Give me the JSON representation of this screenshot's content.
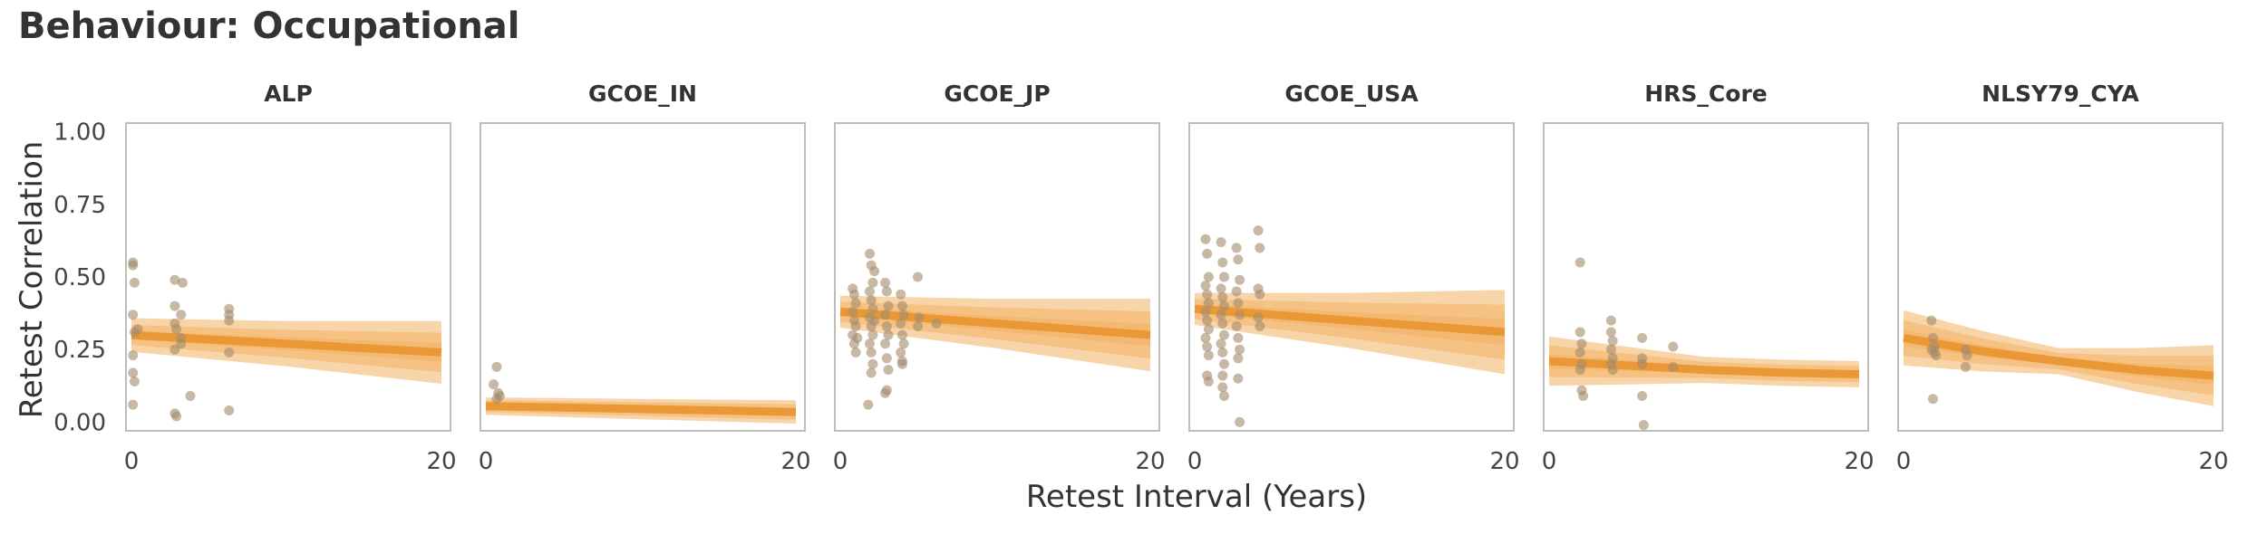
{
  "title": "Behaviour: Occupational",
  "chart_data": {
    "type": "scatter",
    "title": "Behaviour: Occupational",
    "xlabel": "Retest Interval (Years)",
    "ylabel": "Retest Correlation",
    "xlim": [
      0,
      20
    ],
    "ylim": [
      -0.03,
      1.03
    ],
    "xticks": [
      0,
      20
    ],
    "yticks": [
      0.0,
      0.25,
      0.5,
      0.75,
      1.0
    ],
    "ytick_labels": [
      "0.00",
      "0.25",
      "0.50",
      "0.75",
      "1.00"
    ],
    "grid": false,
    "colors": {
      "point": "#a38a6a",
      "band": "#f0a040",
      "line": "#e8922a",
      "frame": "#bdbdbd"
    },
    "panels": [
      {
        "name": "ALP",
        "fit": {
          "x": [
            0,
            5,
            10,
            15,
            20
          ],
          "median": [
            0.3,
            0.285,
            0.27,
            0.255,
            0.24
          ],
          "half_widths": [
            0.012,
            0.028,
            0.048
          ],
          "widen": [
            0.01,
            0.03,
            0.06
          ]
        },
        "points": [
          [
            0.1,
            0.55
          ],
          [
            0.1,
            0.54
          ],
          [
            0.2,
            0.48
          ],
          [
            0.1,
            0.37
          ],
          [
            0.2,
            0.31
          ],
          [
            0.4,
            0.32
          ],
          [
            0.1,
            0.23
          ],
          [
            0.1,
            0.17
          ],
          [
            0.2,
            0.14
          ],
          [
            0.1,
            0.06
          ],
          [
            2.8,
            0.49
          ],
          [
            3.3,
            0.48
          ],
          [
            2.8,
            0.4
          ],
          [
            3.2,
            0.37
          ],
          [
            2.8,
            0.34
          ],
          [
            2.9,
            0.32
          ],
          [
            3.2,
            0.29
          ],
          [
            3.2,
            0.27
          ],
          [
            2.8,
            0.25
          ],
          [
            2.8,
            0.03
          ],
          [
            2.9,
            0.02
          ],
          [
            3.8,
            0.09
          ],
          [
            6.3,
            0.39
          ],
          [
            6.3,
            0.37
          ],
          [
            6.3,
            0.35
          ],
          [
            6.3,
            0.24
          ],
          [
            6.3,
            0.04
          ]
        ]
      },
      {
        "name": "GCOE_IN",
        "fit": {
          "x": [
            0,
            5,
            10,
            15,
            20
          ],
          "median": [
            0.055,
            0.05,
            0.045,
            0.04,
            0.035
          ],
          "half_widths": [
            0.01,
            0.02,
            0.03
          ],
          "widen": [
            0.0,
            0.005,
            0.01
          ]
        },
        "points": [
          [
            0.5,
            0.13
          ],
          [
            0.7,
            0.19
          ],
          [
            0.8,
            0.1
          ],
          [
            0.9,
            0.09
          ],
          [
            0.7,
            0.08
          ]
        ]
      },
      {
        "name": "GCOE_JP",
        "fit": {
          "x": [
            0,
            5,
            10,
            15,
            20
          ],
          "median": [
            0.38,
            0.36,
            0.34,
            0.32,
            0.3
          ],
          "half_widths": [
            0.012,
            0.028,
            0.045
          ],
          "widen": [
            0.01,
            0.04,
            0.08
          ]
        },
        "points": [
          [
            0.8,
            0.46
          ],
          [
            0.9,
            0.44
          ],
          [
            1.0,
            0.41
          ],
          [
            0.8,
            0.38
          ],
          [
            0.9,
            0.35
          ],
          [
            1.0,
            0.33
          ],
          [
            0.8,
            0.3
          ],
          [
            0.9,
            0.27
          ],
          [
            1.0,
            0.24
          ],
          [
            1.1,
            0.29
          ],
          [
            1.9,
            0.58
          ],
          [
            2.0,
            0.54
          ],
          [
            2.1,
            0.48
          ],
          [
            1.9,
            0.45
          ],
          [
            2.0,
            0.42
          ],
          [
            2.1,
            0.39
          ],
          [
            1.9,
            0.36
          ],
          [
            2.0,
            0.33
          ],
          [
            2.1,
            0.3
          ],
          [
            1.9,
            0.27
          ],
          [
            2.0,
            0.24
          ],
          [
            2.1,
            0.2
          ],
          [
            2.0,
            0.17
          ],
          [
            1.8,
            0.06
          ],
          [
            2.2,
            0.52
          ],
          [
            2.2,
            0.35
          ],
          [
            2.9,
            0.48
          ],
          [
            3.0,
            0.45
          ],
          [
            3.1,
            0.4
          ],
          [
            2.9,
            0.37
          ],
          [
            3.0,
            0.33
          ],
          [
            3.1,
            0.3
          ],
          [
            2.9,
            0.27
          ],
          [
            3.0,
            0.22
          ],
          [
            3.1,
            0.18
          ],
          [
            3.0,
            0.11
          ],
          [
            2.9,
            0.1
          ],
          [
            3.9,
            0.44
          ],
          [
            4.0,
            0.4
          ],
          [
            4.1,
            0.37
          ],
          [
            3.9,
            0.34
          ],
          [
            4.0,
            0.3
          ],
          [
            4.1,
            0.27
          ],
          [
            3.9,
            0.24
          ],
          [
            4.0,
            0.21
          ],
          [
            4.0,
            0.2
          ],
          [
            5.0,
            0.5
          ],
          [
            5.1,
            0.36
          ],
          [
            5.0,
            0.33
          ],
          [
            6.2,
            0.34
          ]
        ]
      },
      {
        "name": "GCOE_USA",
        "fit": {
          "x": [
            0,
            5,
            10,
            15,
            20
          ],
          "median": [
            0.39,
            0.37,
            0.35,
            0.33,
            0.31
          ],
          "half_widths": [
            0.012,
            0.028,
            0.045
          ],
          "widen": [
            0.01,
            0.05,
            0.1
          ]
        },
        "points": [
          [
            0.7,
            0.63
          ],
          [
            0.8,
            0.58
          ],
          [
            0.9,
            0.5
          ],
          [
            0.7,
            0.47
          ],
          [
            0.8,
            0.44
          ],
          [
            0.9,
            0.41
          ],
          [
            0.7,
            0.38
          ],
          [
            0.8,
            0.35
          ],
          [
            0.9,
            0.32
          ],
          [
            0.7,
            0.29
          ],
          [
            0.8,
            0.26
          ],
          [
            0.9,
            0.23
          ],
          [
            0.8,
            0.16
          ],
          [
            0.9,
            0.14
          ],
          [
            1.7,
            0.62
          ],
          [
            1.8,
            0.55
          ],
          [
            1.9,
            0.5
          ],
          [
            1.7,
            0.46
          ],
          [
            1.8,
            0.43
          ],
          [
            1.9,
            0.4
          ],
          [
            1.7,
            0.37
          ],
          [
            1.8,
            0.34
          ],
          [
            1.9,
            0.3
          ],
          [
            1.7,
            0.27
          ],
          [
            1.8,
            0.24
          ],
          [
            1.9,
            0.2
          ],
          [
            1.8,
            0.16
          ],
          [
            1.8,
            0.12
          ],
          [
            1.9,
            0.09
          ],
          [
            2.7,
            0.6
          ],
          [
            2.8,
            0.56
          ],
          [
            2.9,
            0.49
          ],
          [
            2.7,
            0.45
          ],
          [
            2.8,
            0.41
          ],
          [
            2.9,
            0.37
          ],
          [
            2.7,
            0.33
          ],
          [
            2.8,
            0.29
          ],
          [
            2.9,
            0.25
          ],
          [
            2.8,
            0.22
          ],
          [
            2.8,
            0.15
          ],
          [
            2.9,
            0.0
          ],
          [
            4.1,
            0.66
          ],
          [
            4.2,
            0.6
          ],
          [
            4.1,
            0.46
          ],
          [
            4.2,
            0.44
          ],
          [
            4.1,
            0.36
          ],
          [
            4.2,
            0.33
          ]
        ]
      },
      {
        "name": "HRS_Core",
        "fit": {
          "x": [
            0,
            5,
            10,
            15,
            20
          ],
          "median": [
            0.21,
            0.195,
            0.18,
            0.17,
            0.165
          ],
          "half_widths": [
            0.012,
            0.028,
            0.045
          ],
          "widen": [
            0.04,
            0.0,
            0.0
          ]
        },
        "points": [
          [
            2.0,
            0.55
          ],
          [
            2.0,
            0.31
          ],
          [
            2.1,
            0.27
          ],
          [
            2.0,
            0.24
          ],
          [
            2.1,
            0.2
          ],
          [
            2.0,
            0.18
          ],
          [
            2.1,
            0.11
          ],
          [
            2.2,
            0.09
          ],
          [
            4.0,
            0.35
          ],
          [
            4.0,
            0.31
          ],
          [
            4.1,
            0.28
          ],
          [
            4.0,
            0.25
          ],
          [
            4.1,
            0.22
          ],
          [
            4.0,
            0.2
          ],
          [
            4.1,
            0.18
          ],
          [
            6.0,
            0.29
          ],
          [
            6.0,
            0.22
          ],
          [
            6.0,
            0.2
          ],
          [
            6.0,
            0.09
          ],
          [
            6.1,
            -0.01
          ],
          [
            8.0,
            0.26
          ],
          [
            8.0,
            0.19
          ]
        ]
      },
      {
        "name": "NLSY79_CYA",
        "fit": {
          "x": [
            0,
            5,
            10,
            15,
            20
          ],
          "median": [
            0.29,
            0.245,
            0.21,
            0.18,
            0.16
          ],
          "half_widths": [
            0.012,
            0.028,
            0.045
          ],
          "widen": [
            0.05,
            0.0,
            0.06
          ]
        },
        "points": [
          [
            1.8,
            0.35
          ],
          [
            1.9,
            0.29
          ],
          [
            2.0,
            0.26
          ],
          [
            1.8,
            0.25
          ],
          [
            2.0,
            0.24
          ],
          [
            2.1,
            0.23
          ],
          [
            1.9,
            0.08
          ],
          [
            4.0,
            0.25
          ],
          [
            4.1,
            0.23
          ],
          [
            4.0,
            0.19
          ]
        ]
      }
    ]
  }
}
